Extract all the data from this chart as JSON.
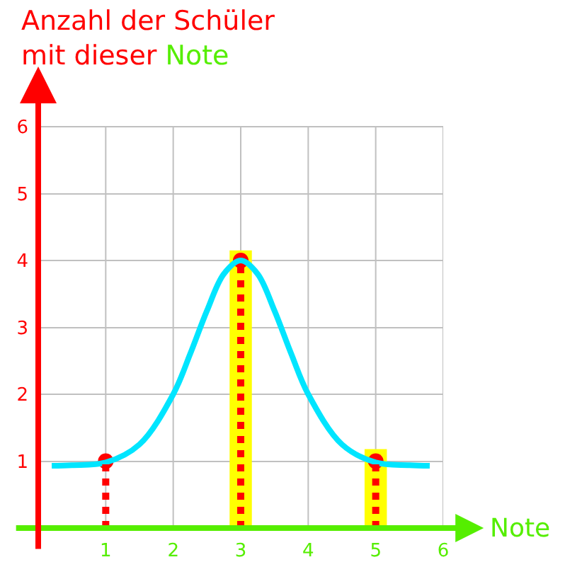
{
  "chart_data": {
    "type": "bar",
    "ylabel": "Anzahl der Schüler mit dieser Note",
    "xlabel": "Note",
    "xlim": [
      0,
      6
    ],
    "ylim": [
      0,
      6.9
    ],
    "xticks": [
      1,
      2,
      3,
      4,
      5,
      6
    ],
    "yticks": [
      1,
      2,
      3,
      4,
      5,
      6
    ],
    "grid": true,
    "series": [
      {
        "color": "#ffff00",
        "x": [
          3,
          5
        ],
        "values": [
          4.15,
          1.18
        ]
      },
      {
        "type": "lollipop",
        "color": "#ff0000",
        "marker": "circle",
        "line_style": "dotted",
        "x": [
          1,
          3,
          5
        ],
        "values": [
          1,
          4,
          1
        ]
      },
      {
        "type": "line",
        "color": "#00e5ff",
        "line_style": "solid",
        "x": [
          0.2,
          0.5,
          1,
          1.5,
          2,
          2.25,
          2.5,
          2.75,
          3,
          3.25,
          3.5,
          3.75,
          4,
          4.5,
          5,
          5.5,
          5.8
        ],
        "values": [
          0.93,
          0.94,
          0.98,
          1.25,
          2.0,
          2.6,
          3.25,
          3.8,
          4.0,
          3.8,
          3.25,
          2.6,
          2.0,
          1.25,
          0.98,
          0.94,
          0.93
        ]
      }
    ]
  }
}
